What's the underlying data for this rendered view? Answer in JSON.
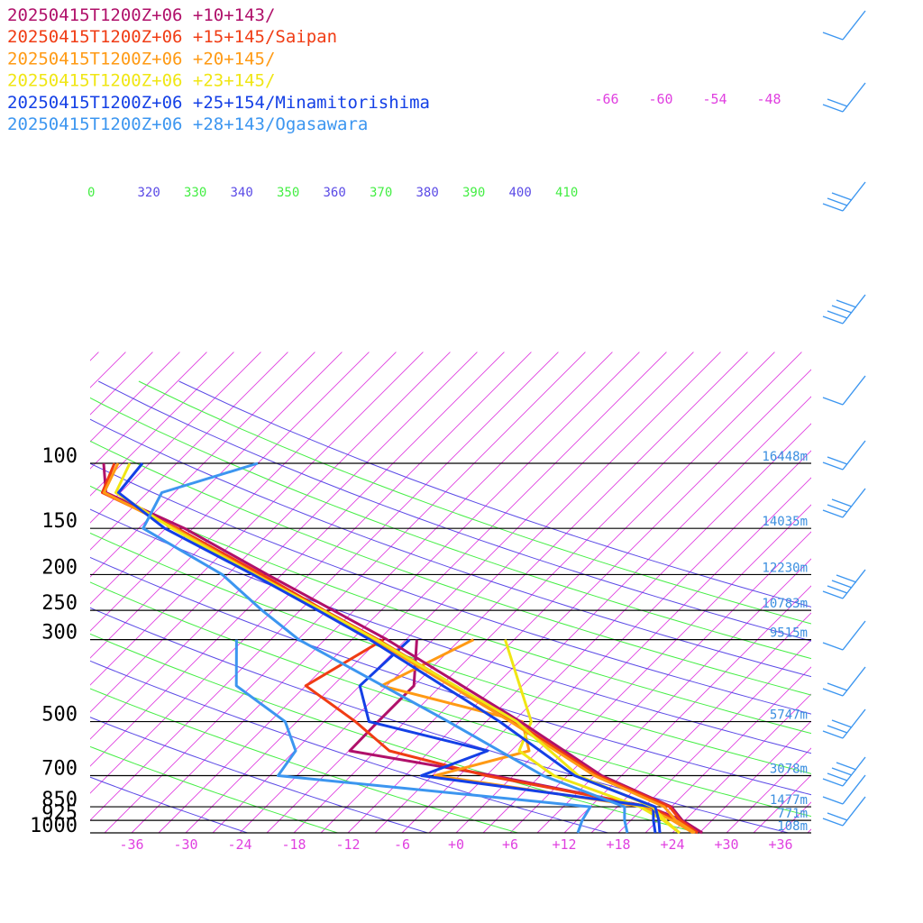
{
  "legend": [
    {
      "text": "20250415T1200Z+06 +10+143/",
      "color": "#b0106a"
    },
    {
      "text": "20250415T1200Z+06 +15+145/Saipan",
      "color": "#f03c14"
    },
    {
      "text": "20250415T1200Z+06 +20+145/",
      "color": "#ff9a14"
    },
    {
      "text": "20250415T1200Z+06 +23+145/",
      "color": "#f0e614"
    },
    {
      "text": "20250415T1200Z+06 +25+154/Minamitorishima",
      "color": "#1440e6"
    },
    {
      "text": "20250415T1200Z+06 +28+143/Ogasawara",
      "color": "#3c96f0"
    }
  ],
  "chart_data": {
    "type": "line",
    "pressure_levels": [
      {
        "p": 100,
        "label": "100",
        "height": "16448m"
      },
      {
        "p": 150,
        "label": "150",
        "height": "14035m"
      },
      {
        "p": 200,
        "label": "200",
        "height": "12230m"
      },
      {
        "p": 250,
        "label": "250",
        "height": "10783m"
      },
      {
        "p": 300,
        "label": "300",
        "height": "9515m"
      },
      {
        "p": 500,
        "label": "500",
        "height": "5747m"
      },
      {
        "p": 700,
        "label": "700",
        "height": "3078m"
      },
      {
        "p": 850,
        "label": "850",
        "height": "1477m"
      },
      {
        "p": 925,
        "label": "925",
        "height": "771m"
      },
      {
        "p": 1000,
        "label": "1000",
        "height": "108m"
      }
    ],
    "x_tick_labels": [
      {
        "t": -36,
        "label": "-36"
      },
      {
        "t": -30,
        "label": "-30"
      },
      {
        "t": -24,
        "label": "-24"
      },
      {
        "t": -18,
        "label": "-18"
      },
      {
        "t": -12,
        "label": "-12"
      },
      {
        "t": -6,
        "label": "-6"
      },
      {
        "t": 0,
        "label": "+0"
      },
      {
        "t": 6,
        "label": "+6"
      },
      {
        "t": 12,
        "label": "+12"
      },
      {
        "t": 18,
        "label": "+18"
      },
      {
        "t": 24,
        "label": "+24"
      },
      {
        "t": 30,
        "label": "+30"
      },
      {
        "t": 36,
        "label": "+36"
      }
    ],
    "upper_temp_labels": [
      {
        "t": -66,
        "label": "-66"
      },
      {
        "t": -60,
        "label": "-60"
      },
      {
        "t": -54,
        "label": "-54"
      },
      {
        "t": -48,
        "label": "-48"
      }
    ],
    "theta_labels": [
      {
        "label": "0",
        "color": "#44ee44"
      },
      {
        "label": "320",
        "color": "#5a4ae6"
      },
      {
        "label": "330",
        "color": "#44ee44"
      },
      {
        "label": "340",
        "color": "#5a4ae6"
      },
      {
        "label": "350",
        "color": "#44ee44"
      },
      {
        "label": "360",
        "color": "#5a4ae6"
      },
      {
        "label": "370",
        "color": "#44ee44"
      },
      {
        "label": "380",
        "color": "#5a4ae6"
      },
      {
        "label": "390",
        "color": "#44ee44"
      },
      {
        "label": "400",
        "color": "#5a4ae6"
      },
      {
        "label": "410",
        "color": "#44ee44"
      }
    ],
    "series": [
      {
        "name": "20250415T1200Z+06 +10+143/",
        "color": "#b0106a",
        "temperature": [
          {
            "p": 1000,
            "t": 27.3
          },
          {
            "p": 925,
            "t": 23.7
          },
          {
            "p": 850,
            "t": 21.0
          },
          {
            "p": 700,
            "t": 9.8
          },
          {
            "p": 500,
            "t": -5.2
          },
          {
            "p": 300,
            "t": -29.1
          },
          {
            "p": 250,
            "t": -38.3
          },
          {
            "p": 200,
            "t": -49.6
          },
          {
            "p": 150,
            "t": -63.9
          },
          {
            "p": 120,
            "t": -76.6
          },
          {
            "p": 100,
            "t": -80.1
          }
        ],
        "dewpoint": [
          {
            "p": 1000,
            "t": 27.3
          },
          {
            "p": 925,
            "t": 23.7
          },
          {
            "p": 850,
            "t": 18.5
          },
          {
            "p": 700,
            "t": -2.2
          },
          {
            "p": 600,
            "t": -20.9
          },
          {
            "p": 500,
            "t": -21.0
          },
          {
            "p": 400,
            "t": -21.0
          },
          {
            "p": 300,
            "t": -25.8
          }
        ]
      },
      {
        "name": "20250415T1200Z+06 +15+145/Saipan",
        "color": "#f03c14",
        "temperature": [
          {
            "p": 1000,
            "t": 26.8
          },
          {
            "p": 925,
            "t": 23.5
          },
          {
            "p": 850,
            "t": 20.8
          },
          {
            "p": 700,
            "t": 9.4
          },
          {
            "p": 500,
            "t": -5.8
          },
          {
            "p": 300,
            "t": -30.1
          },
          {
            "p": 250,
            "t": -39.3
          },
          {
            "p": 200,
            "t": -50.2
          },
          {
            "p": 150,
            "t": -64.7
          },
          {
            "p": 120,
            "t": -77.0
          },
          {
            "p": 100,
            "t": -78.9
          }
        ],
        "dewpoint": [
          {
            "p": 1000,
            "t": 26.8
          },
          {
            "p": 925,
            "t": 23.0
          },
          {
            "p": 850,
            "t": 18.6
          },
          {
            "p": 700,
            "t": -3.0
          },
          {
            "p": 600,
            "t": -16.5
          },
          {
            "p": 500,
            "t": -23.5
          },
          {
            "p": 400,
            "t": -33.0
          },
          {
            "p": 300,
            "t": -29.5
          }
        ]
      },
      {
        "name": "20250415T1200Z+06 +20+145/",
        "color": "#ff9a14",
        "temperature": [
          {
            "p": 1000,
            "t": 26.5
          },
          {
            "p": 925,
            "t": 23.0
          },
          {
            "p": 850,
            "t": 20.2
          },
          {
            "p": 700,
            "t": 9.0
          },
          {
            "p": 500,
            "t": -6.3
          },
          {
            "p": 300,
            "t": -30.6
          },
          {
            "p": 250,
            "t": -39.5
          },
          {
            "p": 200,
            "t": -50.8
          },
          {
            "p": 150,
            "t": -65.0
          },
          {
            "p": 120,
            "t": -76.8
          },
          {
            "p": 100,
            "t": -78.5
          }
        ],
        "dewpoint": [
          {
            "p": 1000,
            "t": 26.3
          },
          {
            "p": 925,
            "t": 22.6
          },
          {
            "p": 850,
            "t": 18.0
          },
          {
            "p": 700,
            "t": -8.7
          },
          {
            "p": 600,
            "t": -1.0
          },
          {
            "p": 500,
            "t": -5.0
          },
          {
            "p": 400,
            "t": -24.6
          },
          {
            "p": 300,
            "t": -19.5
          }
        ]
      },
      {
        "name": "20250415T1200Z+06 +23+145/",
        "color": "#f0e614",
        "temperature": [
          {
            "p": 1000,
            "t": 24.8
          },
          {
            "p": 925,
            "t": 21.8
          },
          {
            "p": 850,
            "t": 18.9
          },
          {
            "p": 700,
            "t": 7.2
          },
          {
            "p": 500,
            "t": -5.6
          },
          {
            "p": 300,
            "t": -30.3
          },
          {
            "p": 250,
            "t": -39.5
          },
          {
            "p": 200,
            "t": -51.0
          },
          {
            "p": 150,
            "t": -65.3
          },
          {
            "p": 120,
            "t": -75.5
          },
          {
            "p": 100,
            "t": -77.2
          }
        ],
        "dewpoint": [
          {
            "p": 1000,
            "t": 24.8
          },
          {
            "p": 925,
            "t": 21.6
          },
          {
            "p": 850,
            "t": 17.5
          },
          {
            "p": 700,
            "t": 4.5
          },
          {
            "p": 600,
            "t": -2.1
          },
          {
            "p": 500,
            "t": -4.0
          },
          {
            "p": 300,
            "t": -16.0
          }
        ]
      },
      {
        "name": "20250415T1200Z+06 +25+154/Minamitorishima",
        "color": "#1440e6",
        "temperature": [
          {
            "p": 1000,
            "t": 22.6
          },
          {
            "p": 925,
            "t": 21.1
          },
          {
            "p": 850,
            "t": 19.2
          },
          {
            "p": 700,
            "t": 6.8
          },
          {
            "p": 500,
            "t": -7.5
          },
          {
            "p": 300,
            "t": -31.0
          },
          {
            "p": 250,
            "t": -40.0
          },
          {
            "p": 200,
            "t": -51.2
          },
          {
            "p": 150,
            "t": -66.1
          },
          {
            "p": 120,
            "t": -75.2
          },
          {
            "p": 100,
            "t": -75.8
          }
        ],
        "dewpoint": [
          {
            "p": 1000,
            "t": 22.1
          },
          {
            "p": 925,
            "t": 20.5
          },
          {
            "p": 850,
            "t": 19.0
          },
          {
            "p": 700,
            "t": -10.2
          },
          {
            "p": 600,
            "t": -5.6
          },
          {
            "p": 500,
            "t": -22.0
          },
          {
            "p": 400,
            "t": -27.0
          },
          {
            "p": 300,
            "t": -26.6
          }
        ]
      },
      {
        "name": "20250415T1200Z+06 +28+143/Ogasawara",
        "color": "#3c96f0",
        "temperature": [
          {
            "p": 1000,
            "t": 19.0
          },
          {
            "p": 925,
            "t": 17.3
          },
          {
            "p": 850,
            "t": 15.8
          },
          {
            "p": 700,
            "t": 3.3
          },
          {
            "p": 500,
            "t": -13.2
          },
          {
            "p": 300,
            "t": -38.9
          },
          {
            "p": 250,
            "t": -46.2
          },
          {
            "p": 200,
            "t": -54.6
          },
          {
            "p": 150,
            "t": -68.5
          },
          {
            "p": 120,
            "t": -70.4
          },
          {
            "p": 100,
            "t": -63.0
          }
        ],
        "dewpoint": [
          {
            "p": 1000,
            "t": 13.5
          },
          {
            "p": 925,
            "t": 12.6
          },
          {
            "p": 850,
            "t": 12.0
          },
          {
            "p": 700,
            "t": -26.1
          },
          {
            "p": 600,
            "t": -26.9
          },
          {
            "p": 500,
            "t": -31.3
          },
          {
            "p": 400,
            "t": -40.7
          },
          {
            "p": 300,
            "t": -45.8
          }
        ]
      }
    ]
  }
}
